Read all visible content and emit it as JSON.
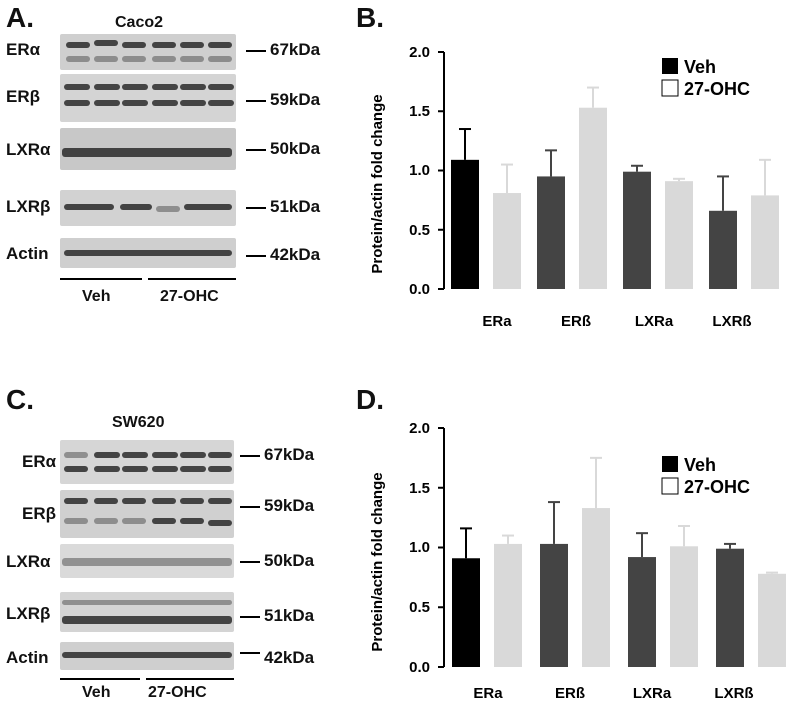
{
  "panels": {
    "a": {
      "letter": "A.",
      "cell_line": "Caco2",
      "blots": [
        {
          "protein": "ERα",
          "kda": "67kDa"
        },
        {
          "protein": "ERβ",
          "kda": "59kDa"
        },
        {
          "protein": "LXRα",
          "kda": "50kDa"
        },
        {
          "protein": "LXRβ",
          "kda": "51kDa"
        },
        {
          "protein": "Actin",
          "kda": "42kDa"
        }
      ],
      "groups": [
        "Veh",
        "27-OHC"
      ]
    },
    "c": {
      "letter": "C.",
      "cell_line": "SW620",
      "blots": [
        {
          "protein": "ERα",
          "kda": "67kDa"
        },
        {
          "protein": "ERβ",
          "kda": "59kDa"
        },
        {
          "protein": "LXRα",
          "kda": "50kDa"
        },
        {
          "protein": "LXRβ",
          "kda": "51kDa"
        },
        {
          "protein": "Actin",
          "kda": "42kDa"
        }
      ],
      "groups": [
        "Veh",
        "27-OHC"
      ]
    },
    "b": {
      "letter": "B."
    },
    "d": {
      "letter": "D."
    }
  },
  "colors": {
    "veh_first": "#000000",
    "veh_other": "#444444",
    "ohc": "#d9d9d9"
  },
  "chart_data": [
    {
      "id": "B",
      "type": "bar",
      "categories": [
        "ERa",
        "ERß",
        "LXRa",
        "LXRß"
      ],
      "series": [
        {
          "name": "Veh",
          "values": [
            1.09,
            0.95,
            0.99,
            0.66
          ],
          "errors": [
            0.26,
            0.22,
            0.05,
            0.29
          ]
        },
        {
          "name": "27-OHC",
          "values": [
            0.81,
            1.53,
            0.91,
            0.79
          ],
          "errors": [
            0.24,
            0.17,
            0.02,
            0.3
          ]
        }
      ],
      "ylabel": "Protein/actin fold change",
      "ylim": [
        0,
        2.0
      ],
      "yticks": [
        "0.0",
        "0.5",
        "1.0",
        "1.5",
        "2.0"
      ],
      "legend": [
        "Veh",
        "27-OHC"
      ],
      "legend_position": "top-right"
    },
    {
      "id": "D",
      "type": "bar",
      "categories": [
        "ERa",
        "ERß",
        "LXRa",
        "LXRß"
      ],
      "series": [
        {
          "name": "Veh",
          "values": [
            0.91,
            1.03,
            0.92,
            0.99
          ],
          "errors": [
            0.25,
            0.35,
            0.2,
            0.04
          ]
        },
        {
          "name": "27-OHC",
          "values": [
            1.03,
            1.33,
            1.01,
            0.78
          ],
          "errors": [
            0.07,
            0.42,
            0.17,
            0.01
          ]
        }
      ],
      "ylabel": "Protein/actin fold change",
      "ylim": [
        0,
        2.0
      ],
      "yticks": [
        "0.0",
        "0.5",
        "1.0",
        "1.5",
        "2.0"
      ],
      "legend": [
        "Veh",
        "27-OHC"
      ],
      "legend_position": "top-right"
    }
  ]
}
